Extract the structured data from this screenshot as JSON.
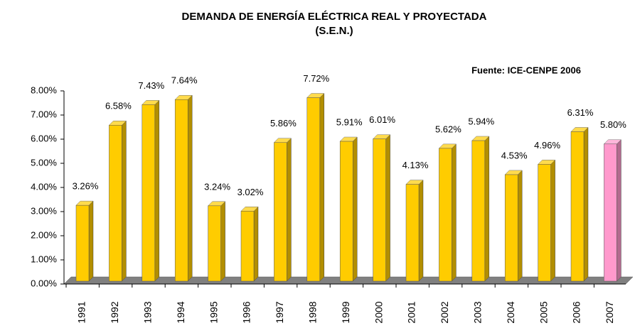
{
  "chart_data": {
    "type": "bar3d",
    "title": "DEMANDA DE ENERGÍA ELÉCTRICA REAL Y PROYECTADA",
    "subtitle": "(S.E.N.)",
    "annotation": "Fuente: ICE-CENPE 2006",
    "categories": [
      "1991",
      "1992",
      "1993",
      "1994",
      "1995",
      "1996",
      "1997",
      "1998",
      "1999",
      "2000",
      "2001",
      "2002",
      "2003",
      "2004",
      "2005",
      "2006",
      "2007"
    ],
    "values": [
      3.26,
      6.58,
      7.43,
      7.64,
      3.24,
      3.02,
      5.86,
      7.72,
      5.91,
      6.01,
      4.13,
      5.62,
      5.94,
      4.53,
      4.96,
      6.31,
      5.8
    ],
    "value_labels": [
      "3.26%",
      "6.58%",
      "7.43%",
      "7.64%",
      "3.24%",
      "3.02%",
      "5.86%",
      "7.72%",
      "5.91%",
      "6.01%",
      "4.13%",
      "5.62%",
      "5.94%",
      "4.53%",
      "4.96%",
      "6.31%",
      "5.80%"
    ],
    "colors": [
      "#FFCC00",
      "#FFCC00",
      "#FFCC00",
      "#FFCC00",
      "#FFCC00",
      "#FFCC00",
      "#FFCC00",
      "#FFCC00",
      "#FFCC00",
      "#FFCC00",
      "#FFCC00",
      "#FFCC00",
      "#FFCC00",
      "#FFCC00",
      "#FFCC00",
      "#FFCC00",
      "#FF99CC"
    ],
    "ylim": [
      0,
      8
    ],
    "yticks": [
      {
        "value": 0,
        "label": "0.00%"
      },
      {
        "value": 1,
        "label": "1.00%"
      },
      {
        "value": 2,
        "label": "2.00%"
      },
      {
        "value": 3,
        "label": "3.00%"
      },
      {
        "value": 4,
        "label": "4.00%"
      },
      {
        "value": 5,
        "label": "5.00%"
      },
      {
        "value": 6,
        "label": "6.00%"
      },
      {
        "value": 7,
        "label": "7.00%"
      },
      {
        "value": 8,
        "label": "8.00%"
      }
    ]
  }
}
